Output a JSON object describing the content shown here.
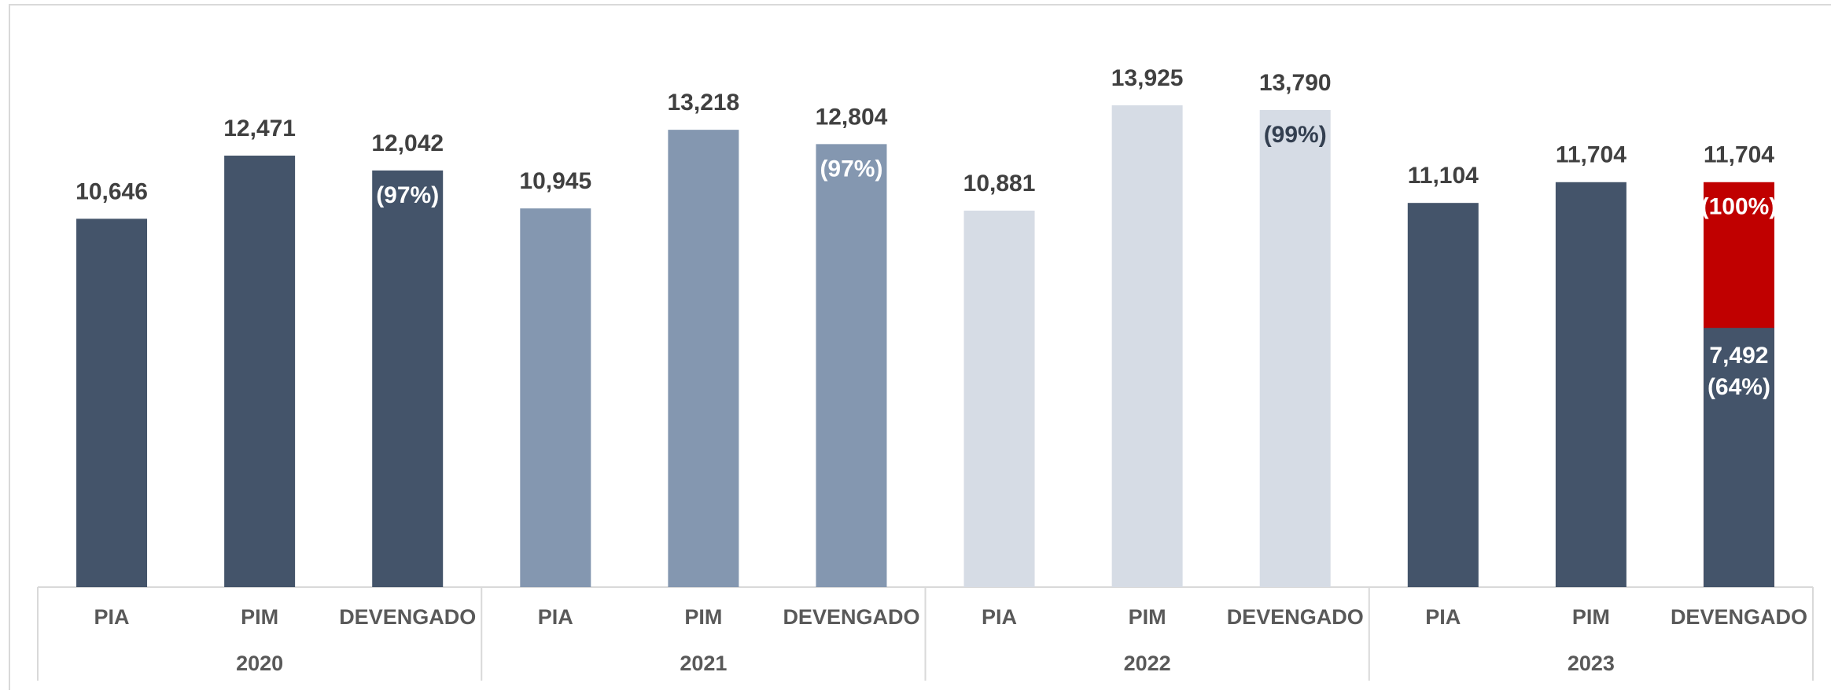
{
  "chart_data": {
    "type": "bar",
    "groups": [
      {
        "name": "2020",
        "color": "#44546a",
        "label_color": "#ffffff",
        "bars": [
          {
            "category": "PIA",
            "value": 10646,
            "value_label": "10,646"
          },
          {
            "category": "PIM",
            "value": 12471,
            "value_label": "12,471"
          },
          {
            "category": "DEVENGADO",
            "value": 12042,
            "value_label": "12,042",
            "share": 97,
            "share_label": "(97%)"
          }
        ]
      },
      {
        "name": "2021",
        "color": "#8497b0",
        "label_color": "#ffffff",
        "bars": [
          {
            "category": "PIA",
            "value": 10945,
            "value_label": "10,945"
          },
          {
            "category": "PIM",
            "value": 13218,
            "value_label": "13,218"
          },
          {
            "category": "DEVENGADO",
            "value": 12804,
            "value_label": "12,804",
            "share": 97,
            "share_label": "(97%)"
          }
        ]
      },
      {
        "name": "2022",
        "color": "#d6dce5",
        "label_color": "#333f50",
        "bars": [
          {
            "category": "PIA",
            "value": 10881,
            "value_label": "10,881"
          },
          {
            "category": "PIM",
            "value": 13925,
            "value_label": "13,925"
          },
          {
            "category": "DEVENGADO",
            "value": 13790,
            "value_label": "13,790",
            "share": 99,
            "share_label": "(99%)"
          }
        ]
      },
      {
        "name": "2023",
        "color": "#44546a",
        "label_color": "#ffffff",
        "bars": [
          {
            "category": "PIA",
            "value": 11104,
            "value_label": "11,104"
          },
          {
            "category": "PIM",
            "value": 11704,
            "value_label": "11,704"
          },
          {
            "category": "DEVENGADO",
            "value": 11704,
            "value_label": "11,704",
            "share": 100,
            "share_label": "(100%)",
            "color": "#c00000",
            "executed": {
              "value": 7492,
              "value_label": "7,492",
              "share": 64,
              "share_label": "(64%)",
              "color": "#44546a"
            }
          }
        ]
      }
    ]
  }
}
